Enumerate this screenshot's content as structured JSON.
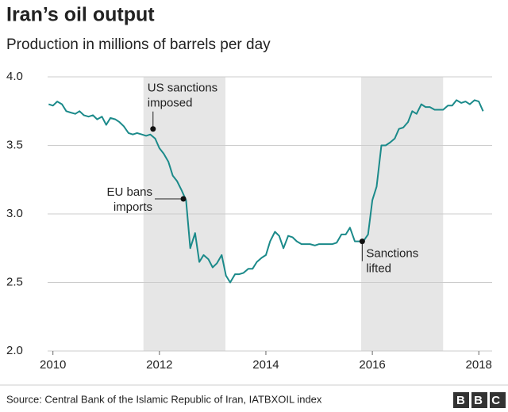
{
  "chart_data": {
    "type": "line",
    "title": "Iran’s oil output",
    "subtitle": "Production in millions of barrels per day",
    "source": "Source: Central Bank of the Islamic Republic of Iran, IATBXOIL index",
    "logo": "BBC",
    "color": "#1b8a8a",
    "grid": true,
    "x": [
      2009.92,
      2010.0,
      2010.08,
      2010.17,
      2010.25,
      2010.33,
      2010.42,
      2010.5,
      2010.58,
      2010.67,
      2010.75,
      2010.83,
      2010.92,
      2011.0,
      2011.08,
      2011.17,
      2011.25,
      2011.33,
      2011.42,
      2011.5,
      2011.58,
      2011.67,
      2011.75,
      2011.83,
      2011.92,
      2012.0,
      2012.08,
      2012.17,
      2012.25,
      2012.33,
      2012.42,
      2012.5,
      2012.58,
      2012.67,
      2012.75,
      2012.83,
      2012.92,
      2013.0,
      2013.08,
      2013.17,
      2013.25,
      2013.33,
      2013.42,
      2013.5,
      2013.58,
      2013.67,
      2013.75,
      2013.83,
      2013.92,
      2014.0,
      2014.08,
      2014.17,
      2014.25,
      2014.33,
      2014.42,
      2014.5,
      2014.58,
      2014.67,
      2014.75,
      2014.83,
      2014.92,
      2015.0,
      2015.08,
      2015.17,
      2015.25,
      2015.33,
      2015.42,
      2015.5,
      2015.58,
      2015.67,
      2015.75,
      2015.83,
      2015.92,
      2016.0,
      2016.08,
      2016.17,
      2016.25,
      2016.33,
      2016.42,
      2016.5,
      2016.58,
      2016.67,
      2016.75,
      2016.83,
      2016.92,
      2017.0,
      2017.08,
      2017.17,
      2017.25,
      2017.33,
      2017.42,
      2017.5,
      2017.58,
      2017.67,
      2017.75,
      2017.83,
      2017.92,
      2018.0,
      2018.08
    ],
    "values": [
      3.8,
      3.79,
      3.82,
      3.8,
      3.75,
      3.74,
      3.73,
      3.75,
      3.72,
      3.71,
      3.72,
      3.69,
      3.71,
      3.65,
      3.7,
      3.69,
      3.67,
      3.64,
      3.59,
      3.58,
      3.59,
      3.58,
      3.57,
      3.58,
      3.55,
      3.48,
      3.44,
      3.38,
      3.28,
      3.24,
      3.17,
      3.1,
      2.75,
      2.86,
      2.65,
      2.7,
      2.67,
      2.61,
      2.64,
      2.7,
      2.55,
      2.5,
      2.56,
      2.56,
      2.57,
      2.6,
      2.6,
      2.65,
      2.68,
      2.7,
      2.8,
      2.87,
      2.84,
      2.75,
      2.84,
      2.83,
      2.8,
      2.78,
      2.78,
      2.78,
      2.77,
      2.78,
      2.78,
      2.78,
      2.78,
      2.79,
      2.85,
      2.85,
      2.9,
      2.8,
      2.8,
      2.8,
      2.85,
      3.1,
      3.2,
      3.5,
      3.5,
      3.52,
      3.55,
      3.62,
      3.63,
      3.67,
      3.75,
      3.73,
      3.8,
      3.78,
      3.78,
      3.76,
      3.76,
      3.76,
      3.79,
      3.79,
      3.83,
      3.81,
      3.82,
      3.8,
      3.83,
      3.82,
      3.75
    ],
    "xlim": [
      2009.9,
      2018.25
    ],
    "xticks": [
      2010,
      2012,
      2014,
      2016,
      2018
    ],
    "ylim": [
      2,
      4
    ],
    "yticks": [
      {
        "value": 2,
        "label": "2.0"
      },
      {
        "value": 2.5,
        "label": "2.5"
      },
      {
        "value": 3,
        "label": "3.0"
      },
      {
        "value": 3.5,
        "label": "3.5"
      },
      {
        "value": 4,
        "label": "4.0"
      }
    ],
    "shaded": [
      [
        2011.7,
        2013.24
      ],
      [
        2015.79,
        2017.33
      ]
    ],
    "annotations": [
      {
        "text": [
          "US sanctions",
          "imposed"
        ],
        "x": 2011.88,
        "y": 3.62
      },
      {
        "text": [
          "EU bans",
          "imports"
        ],
        "x": 2012.45,
        "y": 3.11
      },
      {
        "text": [
          "Sanctions",
          "lifted"
        ],
        "x": 2015.81,
        "y": 2.8
      }
    ]
  }
}
